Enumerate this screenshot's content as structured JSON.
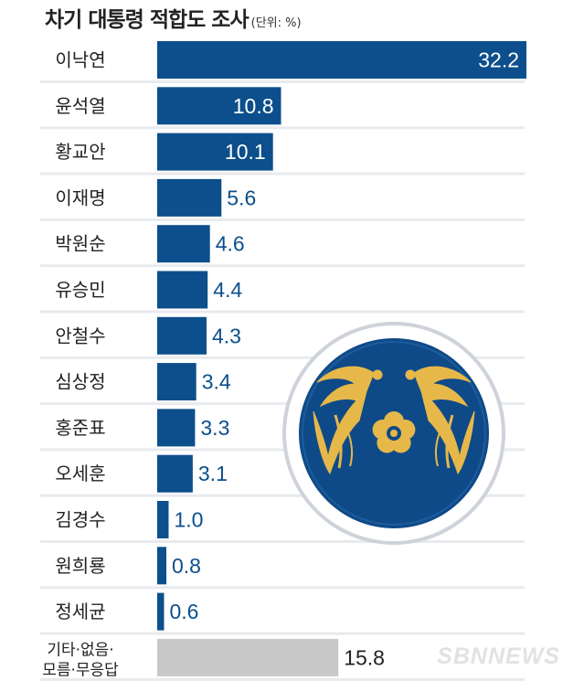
{
  "chart_data": {
    "type": "bar",
    "orientation": "horizontal",
    "title": "차기 대통령 적합도 조사",
    "unit_label": "(단위: %)",
    "categories": [
      "이낙연",
      "윤석열",
      "황교안",
      "이재명",
      "박원순",
      "유승민",
      "안철수",
      "심상정",
      "홍준표",
      "오세훈",
      "김경수",
      "원희룡",
      "정세균",
      "기타·없음·\n모름·무응답"
    ],
    "values": [
      32.2,
      10.8,
      10.1,
      5.6,
      4.6,
      4.4,
      4.3,
      3.4,
      3.3,
      3.1,
      1.0,
      0.8,
      0.6,
      15.8
    ],
    "value_labels": [
      "32.2",
      "10.8",
      "10.1",
      "5.6",
      "4.6",
      "4.4",
      "4.3",
      "3.4",
      "3.3",
      "3.1",
      "1.0",
      "0.8",
      "0.6",
      "15.8"
    ],
    "xlim": [
      0,
      32.2
    ],
    "grid": false,
    "legend": "none",
    "colors": {
      "bar": "#0c4f8c",
      "other_bar": "#c8c8c8",
      "value_text": "#0c4f8c",
      "other_value_text": "#222222",
      "label_text": "#222222",
      "stripe": "#e8eaed"
    }
  },
  "watermark": "SBNNEWS",
  "emblem": {
    "icon": "blue-house-phoenix-emblem",
    "colors": {
      "disc": "#0f4a88",
      "gold": "#e6b84a",
      "rim": "#ffffff",
      "shadow": "#ced3da"
    }
  }
}
